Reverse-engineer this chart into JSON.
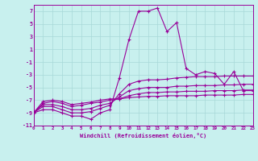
{
  "xlabel": "Windchill (Refroidissement éolien,°C)",
  "background_color": "#c8f0ee",
  "line_color": "#990099",
  "grid_color": "#a8d8d8",
  "xlim": [
    0,
    23
  ],
  "ylim": [
    -11,
    8
  ],
  "yticks": [
    -11,
    -9,
    -7,
    -5,
    -3,
    -1,
    1,
    3,
    5,
    7
  ],
  "xticks": [
    0,
    1,
    2,
    3,
    4,
    5,
    6,
    7,
    8,
    9,
    10,
    11,
    12,
    13,
    14,
    15,
    16,
    17,
    18,
    19,
    20,
    21,
    22,
    23
  ],
  "main_x": [
    0,
    1,
    2,
    3,
    4,
    5,
    6,
    7,
    8,
    9,
    10,
    11,
    12,
    13,
    14,
    15,
    16,
    17,
    18,
    19,
    20,
    21,
    22,
    23
  ],
  "main_y": [
    -9,
    -8.5,
    -8.5,
    -9,
    -9.5,
    -9.5,
    -10,
    -9,
    -8.5,
    -3.5,
    2.5,
    7,
    7,
    7.5,
    3.8,
    5.2,
    -2,
    -3,
    -2.5,
    -2.8,
    -4.5,
    -2.5,
    -5.5,
    -5.5
  ],
  "line2_x": [
    0,
    1,
    2,
    3,
    4,
    5,
    6,
    7,
    8,
    9,
    10,
    11,
    12,
    13,
    14,
    15,
    16,
    17,
    18,
    19,
    20,
    21,
    22,
    23
  ],
  "line2_y": [
    -9,
    -8,
    -8,
    -8.5,
    -9,
    -9,
    -8.8,
    -8.3,
    -7.8,
    -6,
    -4.5,
    -4,
    -3.8,
    -3.8,
    -3.7,
    -3.5,
    -3.4,
    -3.3,
    -3.3,
    -3.3,
    -3.2,
    -3.2,
    -3.2,
    -3.2
  ],
  "line3_x": [
    0,
    1,
    2,
    3,
    4,
    5,
    6,
    7,
    8,
    9,
    10,
    11,
    12,
    13,
    14,
    15,
    16,
    17,
    18,
    19,
    20,
    21,
    22,
    23
  ],
  "line3_y": [
    -9,
    -7.7,
    -7.7,
    -8,
    -8.5,
    -8.5,
    -8.3,
    -7.8,
    -7.5,
    -6.5,
    -5.5,
    -5.2,
    -5,
    -5,
    -5,
    -4.8,
    -4.8,
    -4.7,
    -4.7,
    -4.7,
    -4.6,
    -4.6,
    -4.5,
    -4.5
  ],
  "line4_x": [
    0,
    1,
    2,
    3,
    4,
    5,
    6,
    7,
    8,
    9,
    10,
    11,
    12,
    13,
    14,
    15,
    16,
    17,
    18,
    19,
    20,
    21,
    22,
    23
  ],
  "line4_y": [
    -9,
    -7.5,
    -7.2,
    -7.5,
    -8,
    -7.8,
    -7.5,
    -7.3,
    -7,
    -6.8,
    -6.3,
    -6,
    -5.8,
    -5.8,
    -5.7,
    -5.7,
    -5.6,
    -5.6,
    -5.6,
    -5.5,
    -5.5,
    -5.5,
    -5.4,
    -5.4
  ],
  "line5_x": [
    0,
    1,
    2,
    3,
    4,
    5,
    6,
    7,
    8,
    9,
    10,
    11,
    12,
    13,
    14,
    15,
    16,
    17,
    18,
    19,
    20,
    21,
    22,
    23
  ],
  "line5_y": [
    -9,
    -7.2,
    -7,
    -7.2,
    -7.7,
    -7.5,
    -7.3,
    -7.0,
    -6.8,
    -6.8,
    -6.6,
    -6.5,
    -6.4,
    -6.4,
    -6.3,
    -6.3,
    -6.3,
    -6.3,
    -6.2,
    -6.2,
    -6.2,
    -6.2,
    -6.1,
    -6.1
  ]
}
